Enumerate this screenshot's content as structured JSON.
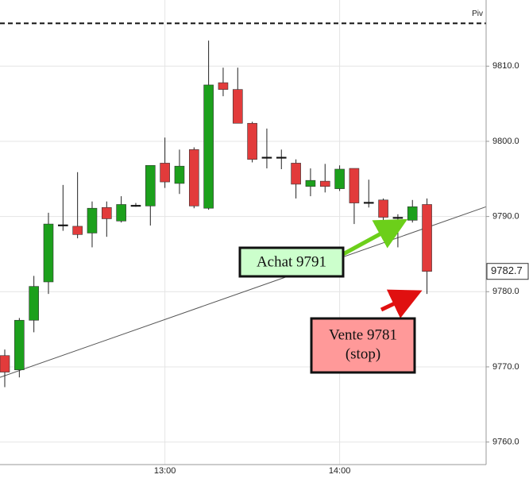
{
  "chart_data": {
    "type": "candlestick",
    "categories": [
      null,
      null,
      null,
      null,
      null,
      null,
      null,
      null,
      null,
      null,
      null,
      "13:00",
      null,
      null,
      null,
      null,
      null,
      null,
      null,
      null,
      null,
      null,
      null,
      "14:00",
      null,
      null,
      null,
      null,
      null,
      null
    ],
    "open": [
      9771.5,
      9769.6,
      9776.2,
      9781.3,
      9788.9,
      9788.7,
      9787.8,
      9791.2,
      9789.4,
      9791.5,
      9791.4,
      9797.1,
      9794.4,
      9798.9,
      9791.1,
      9807.8,
      9806.9,
      9802.4,
      9797.9,
      9797.9,
      9797.1,
      9794.0,
      9794.7,
      9793.7,
      9796.4,
      9791.9,
      9792.2,
      9789.9,
      9789.5,
      9791.6
    ],
    "high": [
      9772.3,
      9776.5,
      9782.1,
      9790.5,
      9794.2,
      9795.9,
      9792.0,
      9792.0,
      9792.7,
      9791.8,
      9796.8,
      9800.5,
      9798.9,
      9799.2,
      9813.4,
      9809.8,
      9809.8,
      9802.6,
      9801.7,
      9798.9,
      9797.6,
      9796.4,
      9797.0,
      9796.8,
      9796.4,
      9794.9,
      9792.4,
      9790.3,
      9792.2,
      9792.4
    ],
    "low": [
      9767.3,
      9768.6,
      9774.6,
      9779.7,
      9788.1,
      9787.1,
      9785.9,
      9787.3,
      9789.2,
      9791.3,
      9788.8,
      9793.8,
      9793.0,
      9791.1,
      9790.9,
      9806.0,
      9802.4,
      9797.2,
      9796.4,
      9796.3,
      9792.4,
      9792.7,
      9793.2,
      9793.4,
      9789.0,
      9791.2,
      9789.4,
      9785.9,
      9789.2,
      9779.7
    ],
    "close": [
      9769.3,
      9776.2,
      9780.7,
      9789.0,
      9788.9,
      9787.6,
      9791.1,
      9789.7,
      9791.6,
      9791.5,
      9796.8,
      9794.6,
      9796.7,
      9791.4,
      9807.5,
      9806.9,
      9802.4,
      9797.6,
      9797.9,
      9797.9,
      9794.3,
      9794.8,
      9794.0,
      9796.3,
      9791.8,
      9791.9,
      9789.9,
      9789.9,
      9791.3,
      9782.7
    ],
    "up_color": "#1ca01c",
    "down_color": "#e23b3b",
    "doji_color": "#111111",
    "ylim": [
      9757.0,
      9818.8
    ],
    "yticks": [
      {
        "value": 9760,
        "label": "9760.0"
      },
      {
        "value": 9770,
        "label": "9770.0"
      },
      {
        "value": 9780,
        "label": "9780.0"
      },
      {
        "value": 9790,
        "label": "9790.0"
      },
      {
        "value": 9800,
        "label": "9800.0"
      },
      {
        "value": 9810,
        "label": "9810.0"
      }
    ],
    "grid": true,
    "last_price": 9782.7,
    "pivot": {
      "label": "Piv",
      "value": 9815.7
    },
    "trendline": [
      9768.6,
      9791.3
    ],
    "annotations": {
      "buy": "Achat 9791",
      "sell": [
        "Vente 9781",
        "(stop)"
      ]
    }
  }
}
